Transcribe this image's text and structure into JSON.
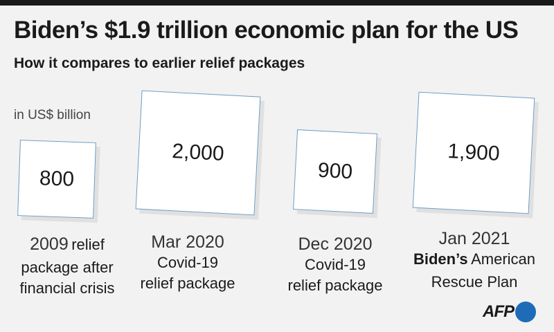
{
  "header": {
    "title": "Biden’s $1.9 trillion economic plan for the US",
    "subtitle": "How it compares to earlier relief packages",
    "unit": "in US$ billion"
  },
  "chart_data": {
    "type": "bar",
    "title": "Biden’s $1.9 trillion economic plan for the US",
    "subtitle": "How it compares to earlier relief packages",
    "unit": "in US$ billion",
    "categories": [
      "2009 relief package after financial crisis",
      "Mar 2020 Covid-19 relief package",
      "Dec 2020 Covid-19 relief package",
      "Jan 2021 Biden’s American Rescue Plan"
    ],
    "values": [
      800,
      2000,
      900,
      1900
    ],
    "value_labels": [
      "800",
      "2,000",
      "900",
      "1,900"
    ]
  },
  "captions": [
    {
      "date": "2009",
      "line1_rest": "relief",
      "line2": "package after",
      "line3": "financial crisis"
    },
    {
      "date": "Mar 2020",
      "line2": "Covid-19",
      "line3": "relief package"
    },
    {
      "date": "Dec 2020",
      "line2": "Covid-19",
      "line3": "relief package"
    },
    {
      "date": "Jan 2021",
      "line2_bold": "Biden’s",
      "line2_rest": "American",
      "line3": "Rescue Plan"
    }
  ],
  "source": {
    "logo_text": "AFP",
    "accent_color": "#1e6bb8"
  },
  "colors": {
    "box_border": "#6e9bc4",
    "box_fill": "#ffffff",
    "background": "#f2f2f2"
  }
}
